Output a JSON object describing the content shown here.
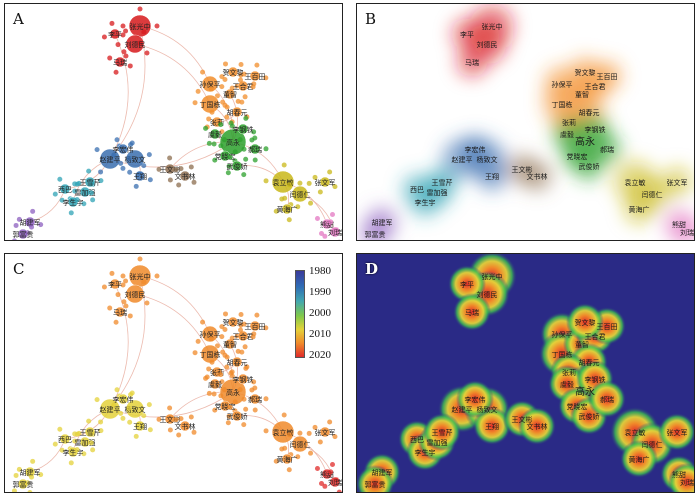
{
  "panels": [
    {
      "label": "A"
    },
    {
      "label": "B"
    },
    {
      "label": "C"
    },
    {
      "label": "D"
    }
  ],
  "legend": {
    "ticks": [
      "1980",
      "1990",
      "2000",
      "2010",
      "2020"
    ],
    "min": 1980,
    "max": 2020,
    "colors": [
      "#3b3b9b",
      "#2f6cb5",
      "#42a7b0",
      "#7fc94b",
      "#e4d23a",
      "#f08a2a",
      "#e02b2a"
    ]
  },
  "nodes": [
    {
      "name": "张光中",
      "cluster": "red"
    },
    {
      "name": "刘德民",
      "cluster": "red"
    },
    {
      "name": "李平",
      "cluster": "red"
    },
    {
      "name": "马瑞",
      "cluster": "red"
    },
    {
      "name": "孙保平",
      "cluster": "orange"
    },
    {
      "name": "丁国栋",
      "cluster": "orange"
    },
    {
      "name": "董智",
      "cluster": "orange"
    },
    {
      "name": "王合君",
      "cluster": "orange"
    },
    {
      "name": "胡春元",
      "cluster": "orange"
    },
    {
      "name": "张莉",
      "cluster": "orange"
    },
    {
      "name": "王百田",
      "cluster": "orange"
    },
    {
      "name": "贺文黎",
      "cluster": "orange"
    },
    {
      "name": "高永",
      "cluster": "green"
    },
    {
      "name": "虞毅",
      "cluster": "green"
    },
    {
      "name": "党晓宏",
      "cluster": "green"
    },
    {
      "name": "李钢铁",
      "cluster": "green"
    },
    {
      "name": "武俊娇",
      "cluster": "green"
    },
    {
      "name": "郝瑞",
      "cluster": "green"
    },
    {
      "name": "赵建平",
      "cluster": "blue"
    },
    {
      "name": "杨致文",
      "cluster": "blue"
    },
    {
      "name": "王翔",
      "cluster": "blue"
    },
    {
      "name": "李宏伟",
      "cluster": "blue"
    },
    {
      "name": "袁立敏",
      "cluster": "olive"
    },
    {
      "name": "闫德仁",
      "cluster": "olive"
    },
    {
      "name": "黄海广",
      "cluster": "olive"
    },
    {
      "name": "张文军",
      "cluster": "olive"
    },
    {
      "name": "西巴",
      "cluster": "teal"
    },
    {
      "name": "李生宇",
      "cluster": "teal"
    },
    {
      "name": "雷加强",
      "cluster": "teal"
    },
    {
      "name": "王雪芹",
      "cluster": "teal"
    },
    {
      "name": "熊甜",
      "cluster": "pink"
    },
    {
      "name": "刘瑞",
      "cluster": "pink"
    },
    {
      "name": "胡建军",
      "cluster": "purple"
    },
    {
      "name": "郭富贵",
      "cluster": "purple"
    },
    {
      "name": "王文彬",
      "cluster": "brown"
    },
    {
      "name": "文书林",
      "cluster": "brown"
    }
  ],
  "edges": [
    [
      "张光中",
      "孙保平"
    ],
    [
      "刘德民",
      "丁国栋"
    ],
    [
      "李平",
      "赵建平"
    ],
    [
      "孙保平",
      "高永"
    ],
    [
      "丁国栋",
      "高永"
    ],
    [
      "董智",
      "高永"
    ],
    [
      "高永",
      "袁立敏"
    ],
    [
      "高永",
      "赵建平"
    ],
    [
      "赵建平",
      "西巴"
    ],
    [
      "西巴",
      "胡建军"
    ],
    [
      "李生宇",
      "赵建平"
    ],
    [
      "袁立敏",
      "熊甜"
    ],
    [
      "闫德仁",
      "刘瑞"
    ],
    [
      "武俊娇",
      "袁立敏"
    ],
    [
      "王文彬",
      "高永"
    ],
    [
      "张光中",
      "赵建平"
    ],
    [
      "胡春元",
      "张莉"
    ],
    [
      "杨致文",
      "王翔"
    ],
    [
      "高永",
      "虞毅"
    ],
    [
      "袁立敏",
      "黄海广"
    ]
  ]
}
